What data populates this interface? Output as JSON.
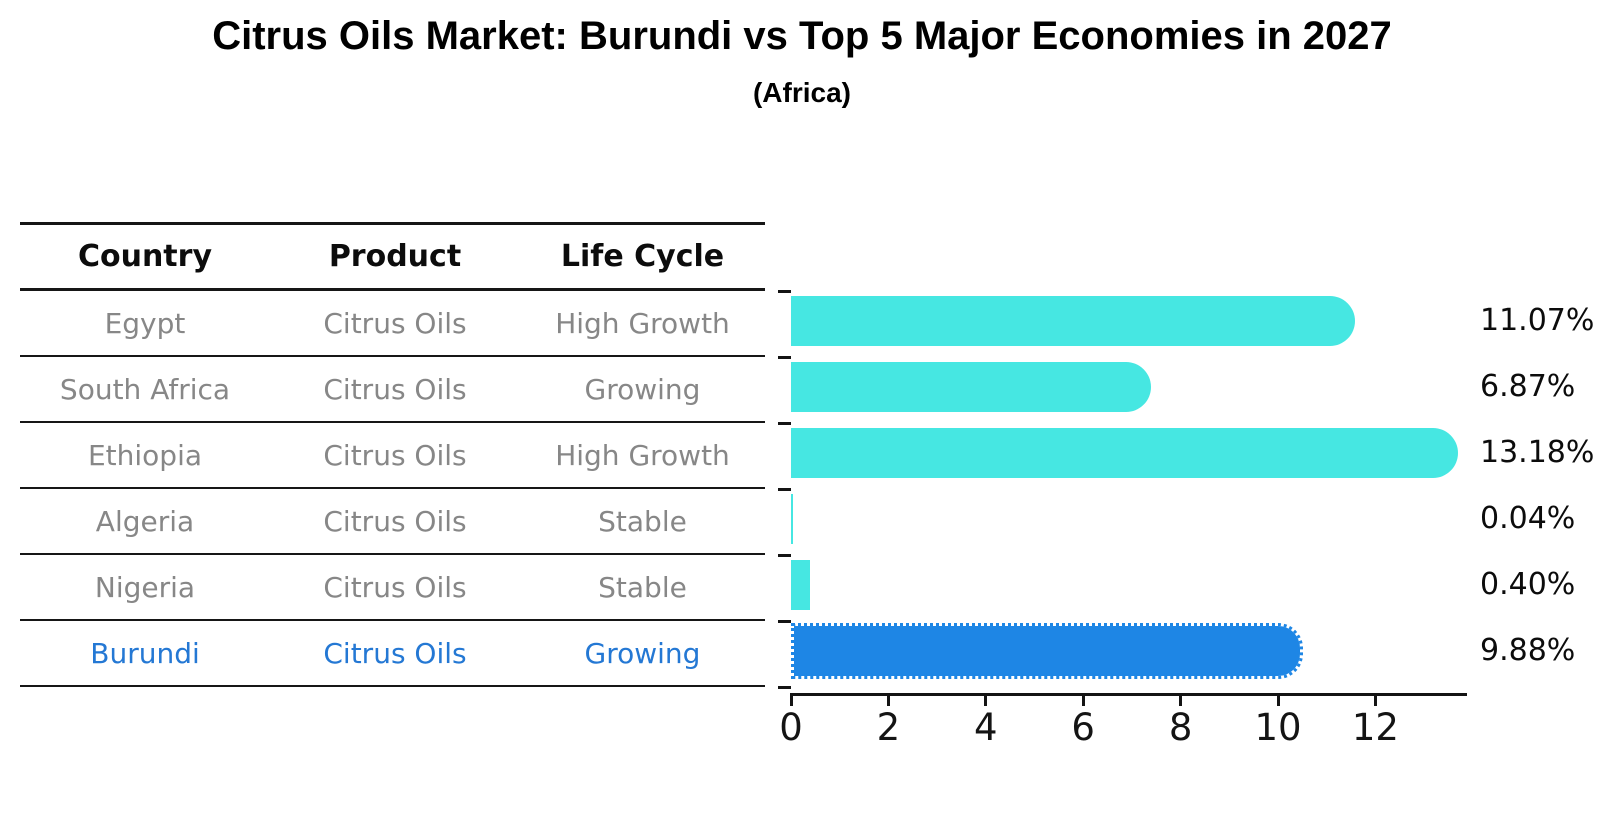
{
  "title": "Citrus Oils Market: Burundi vs Top 5 Major Economies in 2027",
  "subtitle": "(Africa)",
  "table": {
    "headers": [
      "Country",
      "Product",
      "Life Cycle"
    ],
    "rows": [
      {
        "country": "Egypt",
        "product": "Citrus Oils",
        "life_cycle": "High Growth",
        "highlight": false
      },
      {
        "country": "South Africa",
        "product": "Citrus Oils",
        "life_cycle": "Growing",
        "highlight": false
      },
      {
        "country": "Ethiopia",
        "product": "Citrus Oils",
        "life_cycle": "High Growth",
        "highlight": false
      },
      {
        "country": "Algeria",
        "product": "Citrus Oils",
        "life_cycle": "Stable",
        "highlight": false
      },
      {
        "country": "Nigeria",
        "product": "Citrus Oils",
        "life_cycle": "Stable",
        "highlight": false
      },
      {
        "country": "Burundi",
        "product": "Citrus Oils",
        "life_cycle": "Growing",
        "highlight": true
      }
    ]
  },
  "chart_data": {
    "type": "bar",
    "orientation": "horizontal",
    "title": "Citrus Oils Market: Burundi vs Top 5 Major Economies in 2027",
    "subtitle": "(Africa)",
    "categories": [
      "Egypt",
      "South Africa",
      "Ethiopia",
      "Algeria",
      "Nigeria",
      "Burundi"
    ],
    "values": [
      11.07,
      6.87,
      13.18,
      0.04,
      0.4,
      9.88
    ],
    "value_labels": [
      "11.07%",
      "6.87%",
      "13.18%",
      "0.04%",
      "0.40%",
      "9.88%"
    ],
    "x_ticks": [
      0,
      2,
      4,
      6,
      8,
      10,
      12
    ],
    "xlim": [
      0,
      13.84
    ],
    "grid": false,
    "legend": false,
    "bar_color": "#46e7e2",
    "highlight_color": "#1e86e5",
    "highlight_text_color": "#2478d4",
    "highlight_index": 5
  }
}
